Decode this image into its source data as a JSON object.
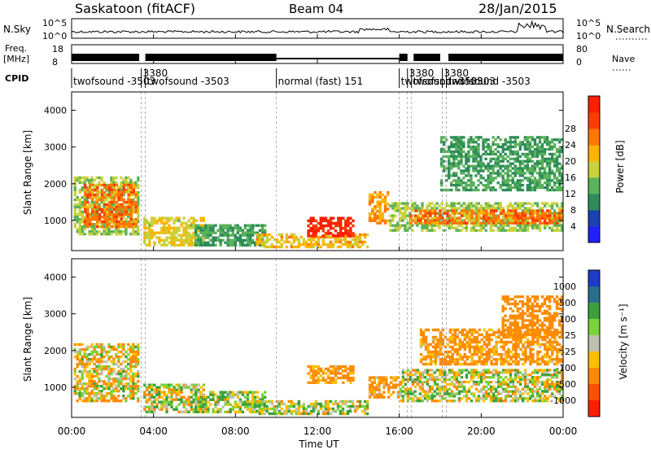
{
  "header": {
    "station": "Saskatoon (fitACF)",
    "beam": "Beam 04",
    "date": "28/Jan/2015"
  },
  "noise_panel": {
    "left_label": "N.Sky",
    "left_ticks": [
      "10^5",
      "10^0"
    ],
    "right_label": "N.Search",
    "right_ticks": [
      "10^5",
      "10^0"
    ]
  },
  "freq_panel": {
    "left_label_1": "Freq.",
    "left_label_2": "[MHz]",
    "left_ticks": [
      "18",
      "8"
    ],
    "right_label": "Nave",
    "right_ticks": [
      "80",
      "0"
    ]
  },
  "cpid": {
    "label": "CPID",
    "segments": [
      {
        "start_hour": 0.0,
        "label": "twofsound  -3503"
      },
      {
        "start_hour": 3.4,
        "label": "3380"
      },
      {
        "start_hour": 3.6,
        "label": "twofsound  -3503"
      },
      {
        "start_hour": 10.0,
        "label": "normal (fast) 151"
      },
      {
        "start_hour": 16.0,
        "label": "twofsound  -3503"
      },
      {
        "start_hour": 16.4,
        "label": "3380"
      },
      {
        "start_hour": 16.6,
        "label": "twofsound  -3503"
      },
      {
        "start_hour": 18.1,
        "label": "3380"
      },
      {
        "start_hour": 18.3,
        "label": "twofsound  -3503"
      }
    ]
  },
  "power_panel": {
    "ylabel": "Slant Range [km]",
    "yticks": [
      "1000",
      "2000",
      "3000",
      "4000"
    ],
    "colorbar_label": "Power [dB]",
    "colorbar_ticks": [
      "4",
      "8",
      "12",
      "16",
      "20",
      "24",
      "28"
    ],
    "colorbar_colors": [
      "#2020ff",
      "#1c40b0",
      "#2e8c5a",
      "#5ab25a",
      "#c8d23c",
      "#ffb400",
      "#ff7800",
      "#ff3c00",
      "#ff1e00"
    ]
  },
  "velocity_panel": {
    "ylabel": "Slant Range [km]",
    "yticks": [
      "1000",
      "2000",
      "3000",
      "4000"
    ],
    "colorbar_label": "Velocity [m s⁻¹]",
    "colorbar_ticks": [
      "1000",
      "500",
      "100",
      "25",
      "-25",
      "-100",
      "-500",
      "-1000"
    ],
    "colorbar_colors": [
      "#1e3cc8",
      "#2a6e8c",
      "#3ca03c",
      "#7ad23c",
      "#c0c0b0",
      "#ffc000",
      "#ff8c00",
      "#ff5000",
      "#ff1e00"
    ]
  },
  "xaxis": {
    "label": "Time UT",
    "ticks": [
      "00:00",
      "04:00",
      "08:00",
      "12:00",
      "16:00",
      "20:00",
      "00:00"
    ]
  },
  "chart_data": [
    {
      "type": "heatmap",
      "title": "Saskatoon (fitACF) Beam 04 28/Jan/2015",
      "xlabel": "Time UT",
      "ylabel": "Slant Range [km]",
      "colorbar_label": "Power [dB]",
      "xlim_hours": [
        0,
        24
      ],
      "ylim": [
        180,
        4500
      ],
      "clim": [
        0,
        30
      ],
      "regions": [
        {
          "t0": 0.1,
          "t1": 3.3,
          "r0": 600,
          "r1": 2200,
          "value": 14
        },
        {
          "t0": 0.6,
          "t1": 3.2,
          "r0": 800,
          "r1": 2000,
          "value": 22
        },
        {
          "t0": 3.5,
          "t1": 6.5,
          "r0": 300,
          "r1": 1100,
          "value": 16
        },
        {
          "t0": 6.0,
          "t1": 9.5,
          "r0": 300,
          "r1": 900,
          "value": 10
        },
        {
          "t0": 9.0,
          "t1": 14.5,
          "r0": 250,
          "r1": 650,
          "value": 18
        },
        {
          "t0": 11.5,
          "t1": 13.8,
          "r0": 550,
          "r1": 1100,
          "value": 28
        },
        {
          "t0": 14.5,
          "t1": 15.5,
          "r0": 900,
          "r1": 1800,
          "value": 20
        },
        {
          "t0": 15.5,
          "t1": 24.0,
          "r0": 700,
          "r1": 1500,
          "value": 14
        },
        {
          "t0": 16.5,
          "t1": 24.0,
          "r0": 900,
          "r1": 1300,
          "value": 22
        },
        {
          "t0": 18.0,
          "t1": 24.0,
          "r0": 1800,
          "r1": 3300,
          "value": 10
        }
      ]
    },
    {
      "type": "heatmap",
      "title": "Saskatoon (fitACF) Beam 04 28/Jan/2015",
      "xlabel": "Time UT",
      "ylabel": "Slant Range [km]",
      "colorbar_label": "Velocity [m s⁻¹]",
      "xlim_hours": [
        0,
        24
      ],
      "ylim": [
        180,
        4500
      ],
      "clim": [
        -1000,
        1000
      ],
      "regions": [
        {
          "t0": 0.1,
          "t1": 3.3,
          "r0": 600,
          "r1": 2200,
          "value": -60
        },
        {
          "t0": 3.5,
          "t1": 6.5,
          "r0": 300,
          "r1": 1100,
          "value": 0
        },
        {
          "t0": 6.0,
          "t1": 9.5,
          "r0": 300,
          "r1": 900,
          "value": 60
        },
        {
          "t0": 9.0,
          "t1": 14.5,
          "r0": 250,
          "r1": 650,
          "value": 40
        },
        {
          "t0": 11.5,
          "t1": 13.8,
          "r0": 1100,
          "r1": 1600,
          "value": -200
        },
        {
          "t0": 14.5,
          "t1": 16.0,
          "r0": 700,
          "r1": 1300,
          "value": -150
        },
        {
          "t0": 16.0,
          "t1": 24.0,
          "r0": 600,
          "r1": 1500,
          "value": 0
        },
        {
          "t0": 17.0,
          "t1": 24.0,
          "r0": 1600,
          "r1": 2600,
          "value": -200
        },
        {
          "t0": 21.0,
          "t1": 24.0,
          "r0": 2400,
          "r1": 3500,
          "value": -300
        }
      ]
    }
  ]
}
